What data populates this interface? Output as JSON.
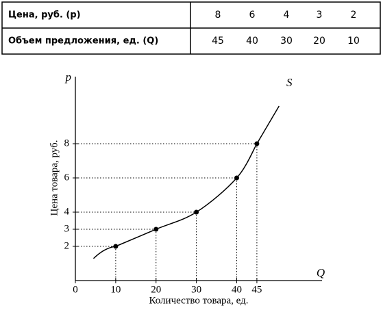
{
  "table": {
    "rows": [
      [
        "Цена, руб. (р)",
        "8",
        "6",
        "4",
        "3",
        "2"
      ],
      [
        "Объем предложения, ед. (Q)",
        "45",
        "40",
        "30",
        "20",
        "10"
      ]
    ]
  },
  "chart_data": {
    "type": "line",
    "x_label": "Количество товара, ед.",
    "y_label": "Цена товара, руб.",
    "x_axis_name": "Q",
    "y_axis_name": "p",
    "curve_label": "S",
    "series": [
      {
        "name": "S",
        "color": "#000000",
        "x": [
          10,
          20,
          30,
          40,
          45
        ],
        "values": [
          2,
          3,
          4,
          6,
          8
        ]
      }
    ],
    "xlim": [
      0,
      62
    ],
    "ylim": [
      0,
      12
    ],
    "xticks": [
      0,
      10,
      20,
      30,
      40,
      45
    ],
    "yticks": [
      2,
      3,
      4,
      6,
      8
    ]
  }
}
